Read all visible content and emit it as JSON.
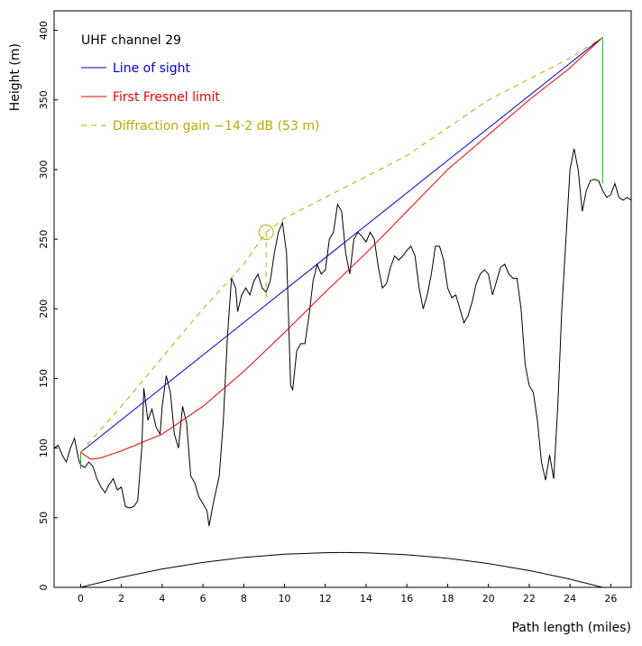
{
  "chart_data": {
    "type": "line",
    "subtitle": "UHF channel 29",
    "x_label": "Path length (miles)",
    "y_label": "Height (m)",
    "xlim": [
      -1.3,
      27
    ],
    "ylim": [
      0,
      414
    ],
    "xticks": [
      0,
      2,
      4,
      6,
      8,
      10,
      12,
      14,
      16,
      18,
      20,
      22,
      24,
      26
    ],
    "yticks": [
      0,
      50,
      100,
      150,
      200,
      250,
      300,
      350,
      400
    ],
    "series": [
      {
        "color": "#000000",
        "x": [
          -1.3,
          -1.1,
          -0.9,
          -0.7,
          -0.5,
          -0.3,
          -0.1,
          0,
          0.2,
          0.4,
          0.6,
          0.8,
          1.0,
          1.2,
          1.4,
          1.6,
          1.8,
          2.0,
          2.2,
          2.4,
          2.6,
          2.8,
          3.0,
          3.1,
          3.3,
          3.5,
          3.7,
          3.9,
          4.0,
          4.2,
          4.4,
          4.6,
          4.8,
          5.0,
          5.2,
          5.4,
          5.6,
          5.8,
          6.0,
          6.2,
          6.3,
          6.5,
          6.8,
          7.0,
          7.2,
          7.4,
          7.6,
          7.7,
          7.9,
          8.1,
          8.3,
          8.5,
          8.7,
          8.9,
          9.1,
          9.3,
          9.5,
          9.7,
          9.9,
          10.1,
          10.3,
          10.4,
          10.6,
          10.8,
          11.0,
          11.2,
          11.4,
          11.6,
          11.8,
          12.0,
          12.2,
          12.4,
          12.6,
          12.8,
          13.0,
          13.2,
          13.4,
          13.6,
          13.8,
          14.0,
          14.2,
          14.4,
          14.6,
          14.8,
          15.0,
          15.2,
          15.4,
          15.6,
          15.8,
          16.0,
          16.2,
          16.4,
          16.6,
          16.8,
          17.0,
          17.2,
          17.4,
          17.6,
          17.8,
          18.0,
          18.2,
          18.4,
          18.6,
          18.8,
          19.0,
          19.2,
          19.4,
          19.6,
          19.8,
          20.0,
          20.2,
          20.4,
          20.6,
          20.8,
          21.0,
          21.2,
          21.4,
          21.6,
          21.8,
          22.0,
          22.2,
          22.4,
          22.6,
          22.8,
          23.0,
          23.2,
          23.4,
          23.6,
          23.8,
          24.0,
          24.2,
          24.4,
          24.6,
          24.8,
          25.0,
          25.2,
          25.4,
          25.6,
          25.8,
          26.0,
          26.2,
          26.4,
          26.6,
          26.8,
          27.0
        ],
        "values": [
          100,
          102,
          95,
          90,
          100,
          107,
          92,
          88,
          86,
          90,
          87,
          78,
          72,
          68,
          74,
          78,
          70,
          72,
          58,
          57,
          58,
          62,
          100,
          143,
          120,
          128,
          115,
          110,
          130,
          152,
          140,
          110,
          100,
          130,
          118,
          80,
          75,
          65,
          60,
          55,
          44,
          60,
          80,
          120,
          180,
          222,
          215,
          198,
          210,
          215,
          210,
          220,
          225,
          215,
          212,
          220,
          240,
          255,
          262,
          240,
          145,
          142,
          170,
          175,
          175,
          195,
          220,
          232,
          225,
          228,
          250,
          255,
          275,
          270,
          240,
          225,
          250,
          255,
          252,
          248,
          255,
          250,
          230,
          215,
          218,
          230,
          238,
          235,
          238,
          242,
          245,
          238,
          215,
          200,
          210,
          225,
          245,
          245,
          235,
          215,
          208,
          210,
          200,
          190,
          195,
          205,
          218,
          225,
          228,
          225,
          210,
          220,
          230,
          232,
          225,
          222,
          222,
          200,
          160,
          145,
          140,
          120,
          90,
          77,
          95,
          78,
          130,
          200,
          250,
          300,
          315,
          300,
          270,
          285,
          292,
          293,
          292,
          285,
          280,
          282,
          290,
          280,
          278,
          280,
          278
        ]
      },
      {
        "color": "#000000",
        "x": [
          0,
          2,
          4,
          6,
          8,
          10,
          12,
          12.8,
          14,
          16,
          18,
          20,
          22,
          24,
          25.6
        ],
        "values": [
          0,
          7.2,
          13.2,
          17.9,
          21.5,
          23.8,
          24.9,
          25,
          24.8,
          23.4,
          20.9,
          17.1,
          12.1,
          5.9,
          0
        ]
      },
      {
        "name": "Line of sight",
        "color": "#0000cc",
        "x": [
          0,
          25.6
        ],
        "values": [
          97,
          395
        ]
      },
      {
        "name": "First Fresnel limit",
        "color": "#ee0000",
        "x": [
          0,
          0.5,
          1,
          2,
          4,
          6,
          8,
          10,
          12,
          14,
          16,
          18,
          20,
          22,
          24,
          25.6
        ],
        "values": [
          97,
          92,
          93,
          98,
          110,
          130,
          155,
          183,
          212,
          240,
          270,
          300,
          325,
          350,
          373,
          395
        ]
      },
      {
        "name": "Diffraction gain −14·2 dB (53 m)",
        "color": "#bbaa00",
        "dashed": true,
        "x": [
          0,
          2,
          4,
          6,
          8,
          9.1,
          10,
          12,
          14,
          16,
          18,
          20,
          22,
          24,
          25.6
        ],
        "values": [
          97,
          130,
          165,
          200,
          232,
          255,
          265,
          280,
          295,
          310,
          330,
          350,
          365,
          380,
          395
        ]
      },
      {
        "color": "#bbaa00",
        "dashed": true,
        "x": [
          9.1,
          9.1
        ],
        "values": [
          255,
          205
        ]
      },
      {
        "color": "#00bb00",
        "x": [
          0,
          0
        ],
        "values": [
          85,
          97
        ]
      },
      {
        "color": "#00bb00",
        "x": [
          25.6,
          25.6
        ],
        "values": [
          290,
          395
        ]
      }
    ],
    "marker": {
      "x": 9.1,
      "y": 255,
      "color": "#bbaa00"
    }
  }
}
